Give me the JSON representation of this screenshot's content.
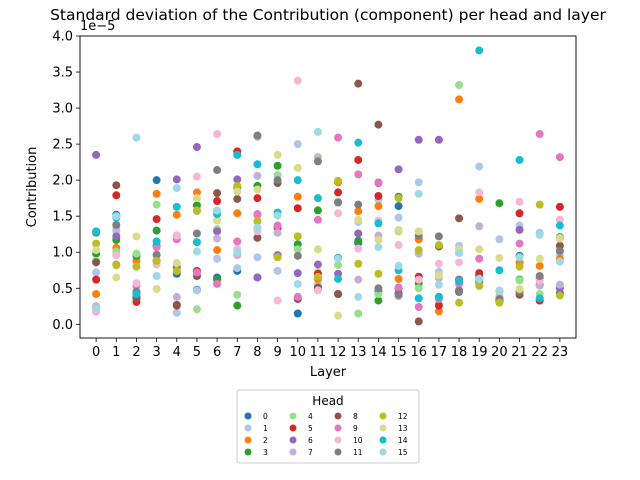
{
  "chart_data": {
    "type": "scatter",
    "title": "Standard deviation of the Contribution (component) per head and layer",
    "xlabel": "Layer",
    "ylabel": "Contribution",
    "y_offset_label": "1e−5",
    "y_scale": 1e-05,
    "xlim": [
      -0.8,
      23.8
    ],
    "ylim": [
      -0.19,
      4.0
    ],
    "x_ticks": [
      0,
      1,
      2,
      3,
      4,
      5,
      6,
      7,
      8,
      9,
      10,
      11,
      12,
      13,
      14,
      15,
      16,
      17,
      18,
      19,
      20,
      21,
      22,
      23
    ],
    "y_ticks": [
      0.0,
      0.5,
      1.0,
      1.5,
      2.0,
      2.5,
      3.0,
      3.5,
      4.0
    ],
    "y_tick_labels": [
      "0.0",
      "0.5",
      "1.0",
      "1.5",
      "2.0",
      "2.5",
      "3.0",
      "3.5",
      "4.0"
    ],
    "legend": {
      "title": "Head",
      "placement": "below-center",
      "columns": 4
    },
    "series": [
      {
        "name": "0",
        "color": "#1f77b4",
        "values": [
          0.23,
          1.52,
          0.38,
          2.0,
          0.7,
          0.48,
          0.65,
          0.74,
          0.65,
          0.95,
          0.15,
          0.52,
          0.92,
          1.13,
          0.46,
          1.64,
          1.18,
          1.08,
          0.45,
          0.68,
          0.32,
          0.95,
          0.55,
          0.43
        ]
      },
      {
        "name": "1",
        "color": "#aec7e8",
        "values": [
          0.72,
          1.29,
          0.93,
          1.3,
          0.16,
          0.47,
          0.91,
          0.78,
          0.93,
          0.74,
          2.5,
          0.57,
          1.7,
          1.42,
          1.73,
          1.48,
          1.97,
          0.73,
          1.09,
          2.19,
          1.18,
          1.37,
          1.27,
          0.97
        ]
      },
      {
        "name": "2",
        "color": "#ff7f0e",
        "values": [
          0.42,
          1.06,
          0.88,
          1.81,
          1.52,
          1.83,
          1.03,
          1.54,
          1.52,
          0.94,
          1.77,
          0.63,
          1.97,
          1.57,
          1.64,
          0.63,
          1.18,
          0.18,
          3.12,
          1.74,
          0.38,
          0.86,
          0.81,
          0.91
        ]
      },
      {
        "name": "3",
        "color": "#2ca02c",
        "values": [
          0.98,
          1.17,
          0.95,
          1.3,
          1.23,
          1.65,
          0.62,
          0.26,
          1.92,
          2.2,
          1.11,
          1.58,
          0.42,
          1.16,
          0.33,
          1.77,
          0.57,
          0.38,
          0.62,
          0.6,
          1.68,
          0.62,
          0.33,
          1.21
        ]
      },
      {
        "name": "4",
        "color": "#98df8a",
        "values": [
          0.88,
          1.01,
          0.98,
          1.66,
          0.78,
          0.21,
          1.32,
          0.41,
          2.6,
          2.07,
          1.04,
          0.72,
          0.82,
          0.15,
          0.42,
          1.29,
          0.5,
          0.28,
          3.32,
          0.53,
          0.32,
          0.61,
          0.42,
          1.2
        ]
      },
      {
        "name": "5",
        "color": "#d62728",
        "values": [
          0.62,
          1.79,
          0.31,
          1.46,
          0.26,
          0.74,
          1.71,
          2.4,
          1.75,
          1.34,
          1.61,
          0.7,
          1.83,
          2.28,
          1.78,
          0.5,
          0.66,
          0.26,
          0.47,
          0.71,
          0.32,
          1.54,
          0.33,
          1.63
        ]
      },
      {
        "name": "6",
        "color": "#9467bd",
        "values": [
          2.35,
          1.22,
          0.44,
          0.88,
          2.01,
          2.46,
          1.29,
          2.01,
          0.65,
          0.96,
          0.71,
          0.83,
          0.7,
          1.26,
          1.96,
          2.15,
          2.56,
          2.56,
          0.62,
          0.57,
          0.33,
          1.31,
          0.54,
          0.5
        ]
      },
      {
        "name": "7",
        "color": "#c5b0d5",
        "values": [
          0.25,
          1.34,
          0.43,
          0.97,
          0.38,
          1.57,
          1.19,
          0.96,
          2.06,
          1.27,
          0.36,
          2.32,
          0.42,
          0.62,
          1.23,
          0.39,
          0.98,
          0.64,
          0.99,
          1.36,
          0.37,
          0.43,
          0.54,
          0.55
        ]
      },
      {
        "name": "8",
        "color": "#8c564b",
        "values": [
          0.86,
          1.93,
          0.36,
          1.09,
          0.27,
          0.67,
          1.82,
          1.74,
          1.2,
          1.96,
          0.35,
          0.51,
          0.42,
          3.34,
          2.77,
          0.43,
          0.04,
          1.09,
          1.47,
          0.65,
          0.34,
          0.41,
          0.64,
          1.09
        ]
      },
      {
        "name": "9",
        "color": "#e377c2",
        "values": [
          0.18,
          0.83,
          0.53,
          1.07,
          1.18,
          0.72,
          0.56,
          1.15,
          1.53,
          1.37,
          0.38,
          1.45,
          2.59,
          2.08,
          1.97,
          0.51,
          0.24,
          0.35,
          0.56,
          0.91,
          0.46,
          1.12,
          2.64,
          2.32
        ]
      },
      {
        "name": "10",
        "color": "#f7b6d2",
        "values": [
          0.19,
          0.96,
          0.57,
          0.83,
          1.23,
          2.05,
          2.64,
          1.04,
          1.29,
          0.33,
          3.38,
          0.47,
          1.54,
          1.05,
          1.44,
          1.1,
          0.62,
          0.84,
          0.86,
          1.83,
          0.47,
          1.7,
          0.61,
          1.45
        ]
      },
      {
        "name": "11",
        "color": "#7f7f7f",
        "values": [
          1.27,
          1.38,
          0.45,
          0.96,
          0.79,
          1.26,
          2.14,
          1.9,
          2.62,
          2.0,
          0.95,
          2.26,
          1.69,
          1.66,
          0.5,
          0.41,
          1.23,
          1.22,
          0.46,
          0.63,
          0.35,
          0.45,
          0.67,
          1.02
        ]
      },
      {
        "name": "12",
        "color": "#bcbd22",
        "values": [
          1.12,
          0.82,
          0.8,
          0.88,
          0.74,
          1.58,
          1.57,
          1.92,
          1.43,
          0.93,
          1.22,
          0.66,
          1.99,
          0.84,
          0.7,
          1.75,
          1.03,
          1.1,
          0.3,
          0.54,
          0.3,
          0.8,
          1.66,
          0.4
        ]
      },
      {
        "name": "13",
        "color": "#dbdb8d",
        "values": [
          1.03,
          0.65,
          1.22,
          0.49,
          0.85,
          1.75,
          1.44,
          1.84,
          1.87,
          2.35,
          2.17,
          1.04,
          0.12,
          1.45,
          1.17,
          1.31,
          1.29,
          0.68,
          1.04,
          1.04,
          0.92,
          0.49,
          0.91,
          1.19
        ]
      },
      {
        "name": "14",
        "color": "#17becf",
        "values": [
          1.29,
          1.48,
          0.42,
          1.15,
          1.63,
          1.14,
          1.53,
          2.35,
          2.22,
          1.55,
          2.0,
          1.75,
          0.63,
          2.52,
          1.4,
          0.75,
          0.36,
          0.38,
          0.6,
          3.8,
          0.75,
          2.28,
          0.36,
          1.37
        ]
      },
      {
        "name": "15",
        "color": "#9edae5",
        "values": [
          0.22,
          1.5,
          2.59,
          0.67,
          1.89,
          1.01,
          1.58,
          1.0,
          1.34,
          1.51,
          0.56,
          2.67,
          0.91,
          0.38,
          1.07,
          0.81,
          1.81,
          0.55,
          0.99,
          0.63,
          0.46,
          0.93,
          1.24,
          0.87
        ]
      }
    ]
  }
}
